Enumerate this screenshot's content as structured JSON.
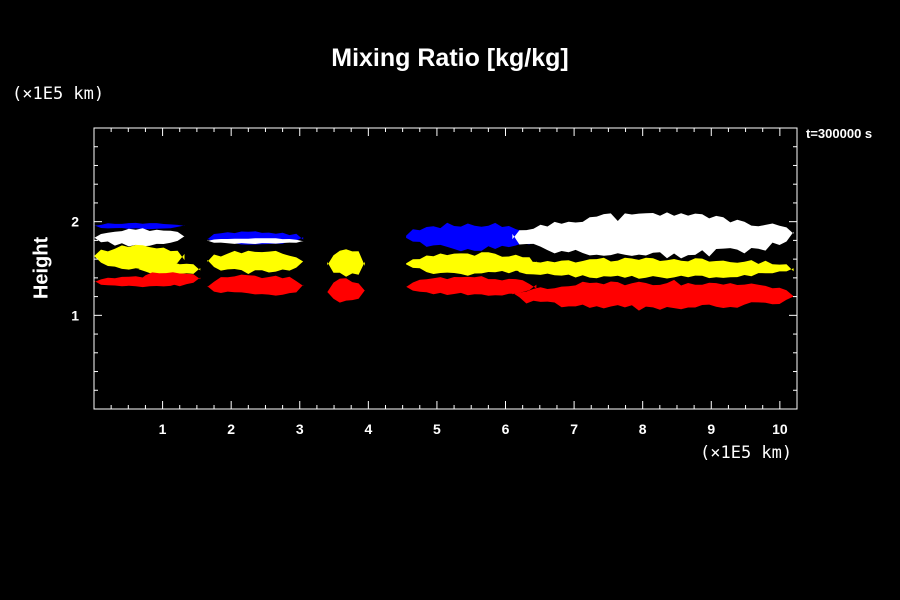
{
  "chart_data": {
    "type": "heatmap",
    "title": "Mixing Ratio [kg/kg]",
    "xlabel": "",
    "ylabel": "Height",
    "x_unit": "(×1E5 km)",
    "y_unit": "(×1E5 km)",
    "annotation": "t=300000 s",
    "xlim": [
      0,
      10.25
    ],
    "ylim": [
      0,
      3
    ],
    "x_ticks": [
      "1",
      "2",
      "3",
      "4",
      "5",
      "6",
      "7",
      "8",
      "9",
      "10"
    ],
    "y_ticks": [
      "1",
      "2"
    ],
    "grid": false,
    "colors": {
      "background": "#000000",
      "axes": "#ffffff",
      "highest_band": "#ffffff",
      "upper_band": "#0000ff",
      "middle_band": "#ffff00",
      "lower_band": "#ff0000",
      "trace_green": "#00cc00",
      "trace_magenta": "#ff00ff"
    },
    "regions": [
      {
        "name": "cloud-1",
        "x": [
          0,
          1.32
        ],
        "layers": [
          {
            "color": "blue",
            "y": [
              1.92,
              1.99
            ]
          },
          {
            "color": "white",
            "y": [
              1.73,
              1.94
            ]
          },
          {
            "color": "yellow",
            "y": [
              1.48,
              1.76
            ]
          },
          {
            "color": "red",
            "y": [
              1.3,
              1.42
            ]
          }
        ]
      },
      {
        "name": "cloud-2",
        "x": [
          0.65,
          1.55
        ],
        "layers": [
          {
            "color": "yellow",
            "y": [
              1.42,
              1.57
            ]
          },
          {
            "color": "red",
            "y": [
              1.3,
              1.48
            ]
          }
        ]
      },
      {
        "name": "cloud-3",
        "x": [
          1.65,
          3.05
        ],
        "layers": [
          {
            "color": "blue",
            "y": [
              1.75,
              1.9
            ]
          },
          {
            "color": "white",
            "y": [
              1.76,
              1.83
            ]
          },
          {
            "color": "yellow",
            "y": [
              1.44,
              1.7
            ]
          },
          {
            "color": "red",
            "y": [
              1.2,
              1.44
            ]
          }
        ]
      },
      {
        "name": "cloud-4",
        "x": [
          3.4,
          3.95
        ],
        "layers": [
          {
            "color": "yellow",
            "y": [
              1.4,
              1.72
            ]
          },
          {
            "color": "red",
            "y": [
              1.12,
              1.4
            ]
          }
        ]
      },
      {
        "name": "cloud-5",
        "x": [
          4.55,
          6.45
        ],
        "layers": [
          {
            "color": "blue",
            "y": [
              1.68,
              2.0
            ]
          },
          {
            "color": "yellow",
            "y": [
              1.42,
              1.68
            ]
          },
          {
            "color": "red",
            "y": [
              1.2,
              1.42
            ]
          }
        ]
      },
      {
        "name": "cloud-6",
        "x": [
          6.1,
          10.2
        ],
        "layers": [
          {
            "color": "white",
            "y": [
              1.6,
              2.1
            ]
          },
          {
            "color": "yellow",
            "y": [
              1.38,
              1.62
            ]
          },
          {
            "color": "red",
            "y": [
              1.05,
              1.38
            ]
          }
        ]
      }
    ]
  }
}
